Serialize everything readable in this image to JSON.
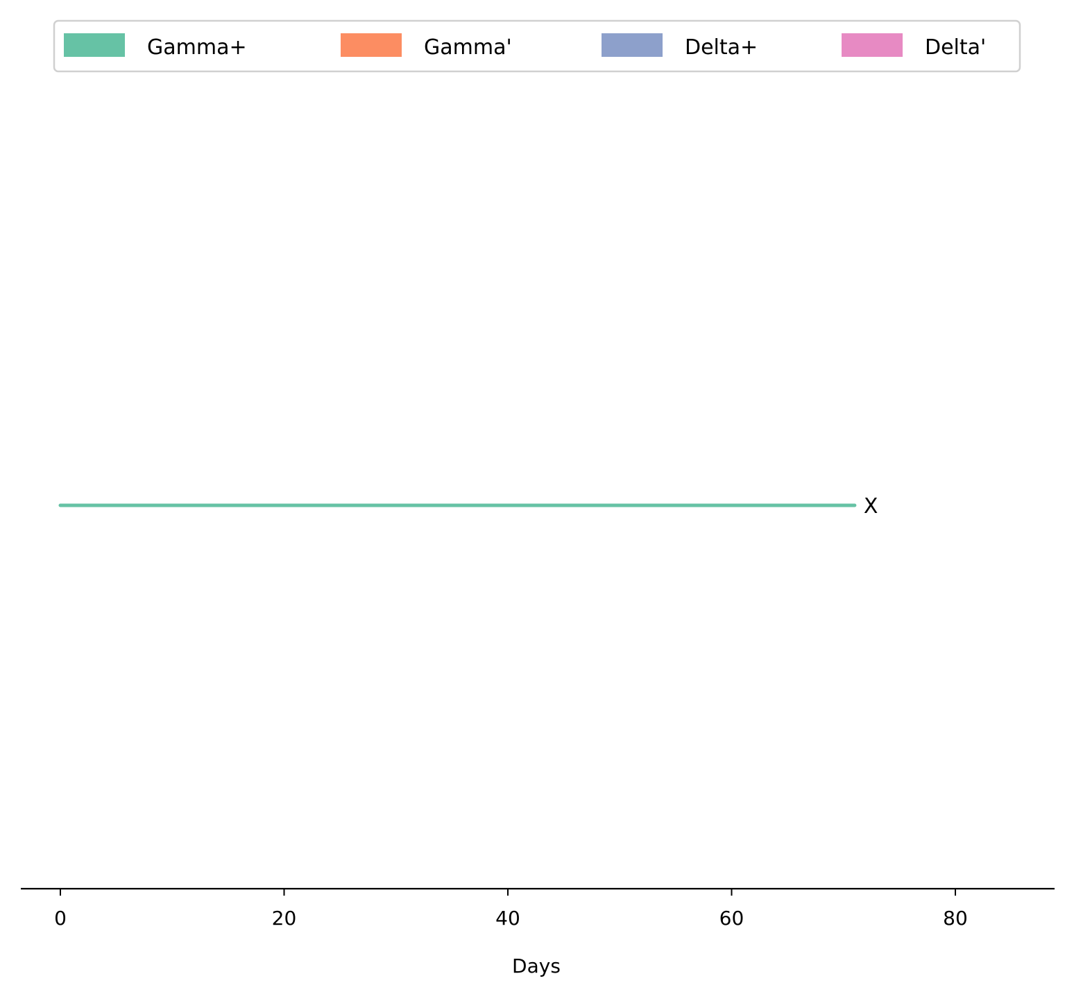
{
  "chart_data": {
    "type": "line",
    "title": "",
    "xlabel": "Days",
    "ylabel": "",
    "xlim": [
      -3.5,
      89
    ],
    "x_ticks": [
      0,
      20,
      40,
      60,
      80
    ],
    "grid": false,
    "legend": {
      "placement": "top-center",
      "entries": [
        {
          "label": "Gamma+",
          "color": "#66c2a5"
        },
        {
          "label": "Gamma'",
          "color": "#fc8d62"
        },
        {
          "label": "Delta+",
          "color": "#8da0cb"
        },
        {
          "label": "Delta'",
          "color": "#e78ac3"
        }
      ]
    },
    "series": [
      {
        "category": "Gamma+",
        "color": "#66c2a5",
        "start": 0,
        "end": 71,
        "end_marker": "X"
      }
    ]
  }
}
